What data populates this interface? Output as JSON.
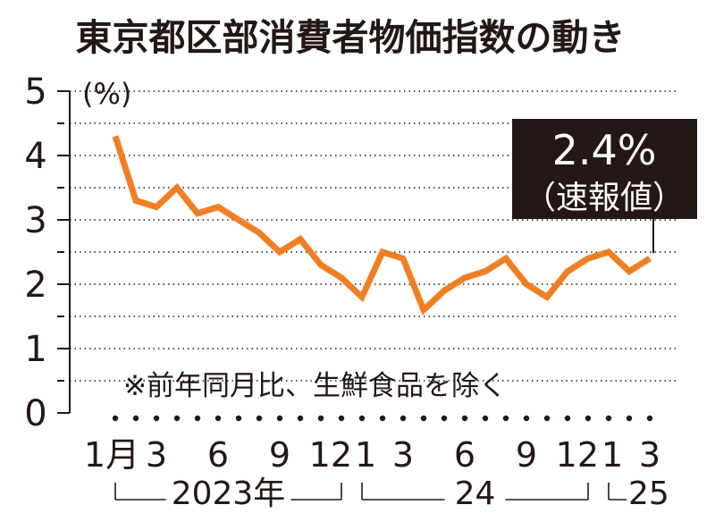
{
  "title": "東京都区部消費者物価指数の動き",
  "colors": {
    "line": "#f07f23",
    "text": "#231815",
    "callout_bg": "#231815",
    "callout_text": "#ffffff"
  },
  "chart_data": {
    "type": "line",
    "title": "東京都区部消費者物価指数の動き",
    "ylabel": "(%)",
    "ylim": [
      0,
      5
    ],
    "yticks": [
      "0",
      "1",
      "2",
      "3",
      "4",
      "5"
    ],
    "xtick_labels": [
      {
        "label": "1月",
        "index": 0
      },
      {
        "label": "3",
        "index": 2
      },
      {
        "label": "6",
        "index": 5
      },
      {
        "label": "9",
        "index": 8
      },
      {
        "label": "12",
        "index": 11
      },
      {
        "label": "1",
        "index": 12
      },
      {
        "label": "3",
        "index": 14
      },
      {
        "label": "6",
        "index": 17
      },
      {
        "label": "9",
        "index": 20
      },
      {
        "label": "12",
        "index": 23
      },
      {
        "label": "1",
        "index": 24
      },
      {
        "label": "3",
        "index": 26
      }
    ],
    "year_groups": [
      {
        "label": "2023年",
        "start": 0,
        "end": 11
      },
      {
        "label": "24",
        "start": 12,
        "end": 23
      },
      {
        "label": "25",
        "start": 24,
        "end": 26
      }
    ],
    "x": [
      "2023-01",
      "2023-02",
      "2023-03",
      "2023-04",
      "2023-05",
      "2023-06",
      "2023-07",
      "2023-08",
      "2023-09",
      "2023-10",
      "2023-11",
      "2023-12",
      "2024-01",
      "2024-02",
      "2024-03",
      "2024-04",
      "2024-05",
      "2024-06",
      "2024-07",
      "2024-08",
      "2024-09",
      "2024-10",
      "2024-11",
      "2024-12",
      "2025-01",
      "2025-02",
      "2025-03"
    ],
    "values": [
      4.3,
      3.3,
      3.2,
      3.5,
      3.1,
      3.2,
      3.0,
      2.8,
      2.5,
      2.7,
      2.3,
      2.1,
      1.8,
      2.5,
      2.4,
      1.6,
      1.9,
      2.1,
      2.2,
      2.4,
      2.0,
      1.8,
      2.2,
      2.4,
      2.5,
      2.2,
      2.4
    ],
    "grid": "dotted horizontal at 0.5 intervals",
    "note": "※前年同月比、生鮮食品を除く",
    "callout": {
      "value": "2.4%",
      "sub": "（速報値）"
    }
  }
}
